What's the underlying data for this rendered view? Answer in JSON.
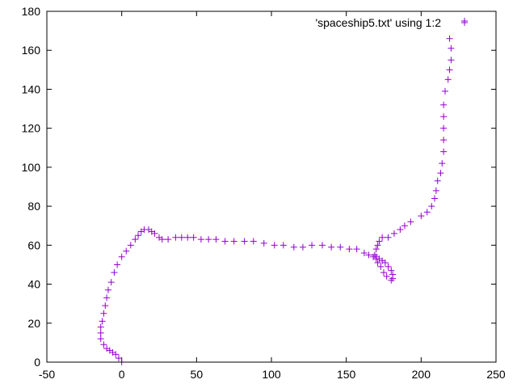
{
  "chart_data": {
    "type": "scatter",
    "title": "",
    "xlabel": "",
    "ylabel": "",
    "xlim": [
      -50,
      250
    ],
    "ylim": [
      0,
      180
    ],
    "xticks": [
      -50,
      0,
      50,
      100,
      150,
      200,
      250
    ],
    "yticks": [
      0,
      20,
      40,
      60,
      80,
      100,
      120,
      140,
      160,
      180
    ],
    "grid": false,
    "legend_position": "top-right",
    "marker": "+",
    "colors": {
      "series": "#9400d3",
      "axes": "#000000"
    },
    "series": [
      {
        "name": "'spaceship5.txt' using 1:2",
        "points": [
          [
            0,
            0
          ],
          [
            -2,
            2
          ],
          [
            -4,
            4
          ],
          [
            -6,
            5
          ],
          [
            -8,
            6
          ],
          [
            -10,
            7
          ],
          [
            -12,
            9
          ],
          [
            -14,
            12
          ],
          [
            -14,
            15
          ],
          [
            -14,
            18
          ],
          [
            -13,
            21
          ],
          [
            -12,
            25
          ],
          [
            -11,
            29
          ],
          [
            -10,
            33
          ],
          [
            -9,
            37
          ],
          [
            -7,
            41
          ],
          [
            -5,
            46
          ],
          [
            -3,
            50
          ],
          [
            0,
            54
          ],
          [
            3,
            57
          ],
          [
            6,
            60
          ],
          [
            9,
            63
          ],
          [
            11,
            65
          ],
          [
            13,
            67
          ],
          [
            15,
            68
          ],
          [
            18,
            68
          ],
          [
            20,
            67
          ],
          [
            22,
            66
          ],
          [
            25,
            64
          ],
          [
            27,
            63
          ],
          [
            31,
            63
          ],
          [
            36,
            64
          ],
          [
            40,
            64
          ],
          [
            44,
            64
          ],
          [
            48,
            64
          ],
          [
            53,
            63
          ],
          [
            58,
            63
          ],
          [
            63,
            63
          ],
          [
            69,
            62
          ],
          [
            75,
            62
          ],
          [
            82,
            62
          ],
          [
            88,
            62
          ],
          [
            95,
            61
          ],
          [
            102,
            60
          ],
          [
            108,
            60
          ],
          [
            115,
            59
          ],
          [
            121,
            59
          ],
          [
            127,
            60
          ],
          [
            134,
            60
          ],
          [
            140,
            59
          ],
          [
            146,
            59
          ],
          [
            152,
            58
          ],
          [
            157,
            58
          ],
          [
            162,
            56
          ],
          [
            165,
            55
          ],
          [
            168,
            54
          ],
          [
            170,
            54
          ],
          [
            172,
            53
          ],
          [
            174,
            52
          ],
          [
            176,
            51
          ],
          [
            178,
            49
          ],
          [
            180,
            47
          ],
          [
            181,
            45
          ],
          [
            181,
            43
          ],
          [
            180,
            42
          ],
          [
            177,
            44
          ],
          [
            175,
            46
          ],
          [
            173,
            49
          ],
          [
            171,
            51
          ],
          [
            170,
            53
          ],
          [
            169,
            55
          ],
          [
            170,
            58
          ],
          [
            171,
            60
          ],
          [
            172,
            62
          ],
          [
            174,
            64
          ],
          [
            178,
            64
          ],
          [
            182,
            66
          ],
          [
            186,
            68
          ],
          [
            189,
            70
          ],
          [
            193,
            72
          ],
          [
            200,
            75
          ],
          [
            204,
            77
          ],
          [
            207,
            80
          ],
          [
            209,
            84
          ],
          [
            210,
            88
          ],
          [
            211,
            93
          ],
          [
            213,
            97
          ],
          [
            214,
            102
          ],
          [
            215,
            108
          ],
          [
            215,
            114
          ],
          [
            215,
            120
          ],
          [
            215,
            126
          ],
          [
            215,
            132
          ],
          [
            216,
            139
          ],
          [
            218,
            145
          ],
          [
            219,
            150
          ],
          [
            220,
            155
          ],
          [
            220,
            161
          ],
          [
            219,
            166
          ],
          [
            229,
            175
          ]
        ]
      }
    ]
  }
}
